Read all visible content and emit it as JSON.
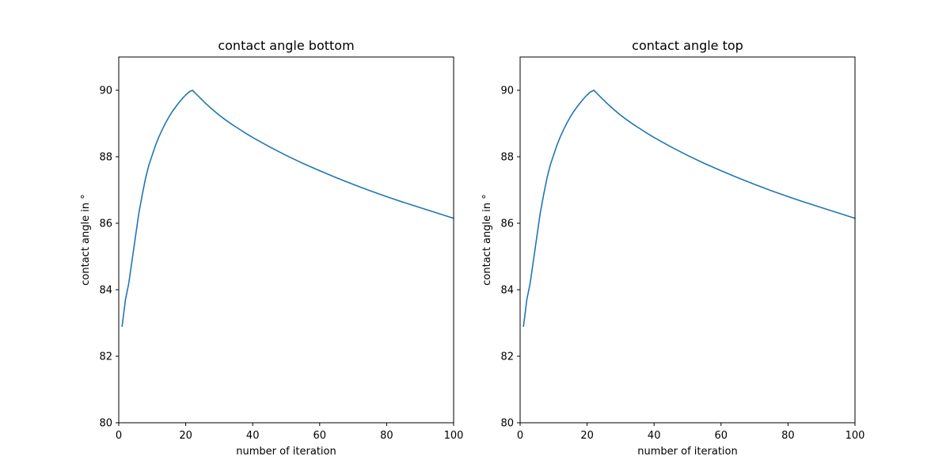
{
  "chart_data": [
    {
      "type": "line",
      "title": "contact angle bottom",
      "xlabel": "number of iteration",
      "ylabel": "contact angle in °",
      "xlim": [
        0,
        100
      ],
      "ylim": [
        80,
        91
      ],
      "xticks": [
        0,
        20,
        40,
        60,
        80,
        100
      ],
      "yticks": [
        80,
        82,
        84,
        86,
        88,
        90
      ],
      "grid": false,
      "series": [
        {
          "color": "#1f77b4",
          "x": [
            1,
            2,
            3,
            4,
            5,
            6,
            7,
            8,
            9,
            10,
            11,
            12,
            13,
            14,
            15,
            16,
            17,
            18,
            19,
            20,
            21,
            22,
            23,
            24,
            25,
            26,
            28,
            30,
            32,
            34,
            36,
            38,
            40,
            45,
            50,
            55,
            60,
            65,
            70,
            75,
            80,
            85,
            90,
            95,
            100
          ],
          "y": [
            82.9,
            83.7,
            84.2,
            84.9,
            85.6,
            86.3,
            86.85,
            87.35,
            87.75,
            88.05,
            88.35,
            88.6,
            88.82,
            89.02,
            89.2,
            89.36,
            89.5,
            89.63,
            89.75,
            89.86,
            89.95,
            90.0,
            89.9,
            89.8,
            89.7,
            89.6,
            89.42,
            89.25,
            89.1,
            88.96,
            88.83,
            88.7,
            88.58,
            88.3,
            88.04,
            87.8,
            87.58,
            87.37,
            87.17,
            86.98,
            86.8,
            86.63,
            86.47,
            86.31,
            86.15
          ]
        }
      ]
    },
    {
      "type": "line",
      "title": "contact angle top",
      "xlabel": "number of iteration",
      "ylabel": "contact angle in °",
      "xlim": [
        0,
        100
      ],
      "ylim": [
        80,
        91
      ],
      "xticks": [
        0,
        20,
        40,
        60,
        80,
        100
      ],
      "yticks": [
        80,
        82,
        84,
        86,
        88,
        90
      ],
      "grid": false,
      "series": [
        {
          "color": "#1f77b4",
          "x": [
            1,
            2,
            3,
            4,
            5,
            6,
            7,
            8,
            9,
            10,
            11,
            12,
            13,
            14,
            15,
            16,
            17,
            18,
            19,
            20,
            21,
            22,
            23,
            24,
            25,
            26,
            28,
            30,
            32,
            34,
            36,
            38,
            40,
            45,
            50,
            55,
            60,
            65,
            70,
            75,
            80,
            85,
            90,
            95,
            100
          ],
          "y": [
            82.9,
            83.7,
            84.2,
            84.9,
            85.6,
            86.3,
            86.85,
            87.35,
            87.75,
            88.05,
            88.35,
            88.6,
            88.82,
            89.02,
            89.2,
            89.36,
            89.5,
            89.63,
            89.75,
            89.86,
            89.95,
            90.0,
            89.9,
            89.8,
            89.7,
            89.6,
            89.42,
            89.25,
            89.1,
            88.96,
            88.83,
            88.7,
            88.58,
            88.3,
            88.04,
            87.8,
            87.58,
            87.37,
            87.17,
            86.98,
            86.8,
            86.63,
            86.47,
            86.31,
            86.15
          ]
        }
      ]
    }
  ]
}
